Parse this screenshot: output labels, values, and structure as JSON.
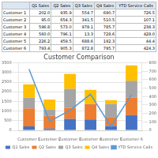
{
  "chart_data": {
    "type": "bar",
    "title": "Customer Comparison",
    "categories": [
      "Customer 1",
      "Customer 2",
      "Customer 3",
      "Customer 4",
      "Customer 5",
      "Customer 6"
    ],
    "stacked": true,
    "series": [
      {
        "name": "Q1 Sales",
        "color": "#4472c4",
        "values": [
          202.0,
          95.0,
          596.8,
          560.0,
          226.2,
          793.4
        ],
        "value_labels": [
          "202.0",
          "95.0",
          "596.8",
          "560.0",
          "226.2",
          "793.4"
        ]
      },
      {
        "name": "Q2 Sales",
        "color": "#ed7d31",
        "values": [
          935.9,
          654.3,
          573.0,
          796.1,
          459.5,
          905.3
        ],
        "value_labels": [
          "935.9",
          "654.3",
          "573.0",
          "796.1",
          "459.5",
          "905.3"
        ]
      },
      {
        "name": "Q3 Sales",
        "color": "#a5a5a5",
        "values": [
          554.7,
          341.5,
          978.1,
          13.3,
          688.6,
          872.8
        ],
        "value_labels": [
          "554.7",
          "341.5",
          "978.1",
          "13.3",
          "688.6",
          "872.8"
        ]
      },
      {
        "name": "Q4 Sales",
        "color": "#ffc000",
        "values": [
          690.7,
          510.5,
          785.7,
          728.6,
          192.3,
          795.7
        ],
        "value_labels": [
          "690.7",
          "510.5",
          "785.7",
          "728.6",
          "192.3",
          "795.7"
        ]
      },
      {
        "name": "YTD Service Calls",
        "type": "line",
        "axis": "y2",
        "color": "#5b9bd5",
        "values": [
          726.5,
          107.1,
          238.3,
          428.0,
          44.4,
          424.3
        ],
        "value_labels": [
          "726.5",
          "107.1",
          "238.3",
          "428.0",
          "44.4",
          "424.3"
        ]
      }
    ],
    "ylim": [
      0,
      3500
    ],
    "yticks": [
      0,
      500,
      1000,
      1500,
      2000,
      2500,
      3000,
      3500
    ],
    "y2lim": [
      0,
      800
    ],
    "y2ticks": [
      0,
      100,
      200,
      300,
      400,
      500,
      600,
      700,
      800
    ],
    "grid": true,
    "legend": "bottom"
  }
}
